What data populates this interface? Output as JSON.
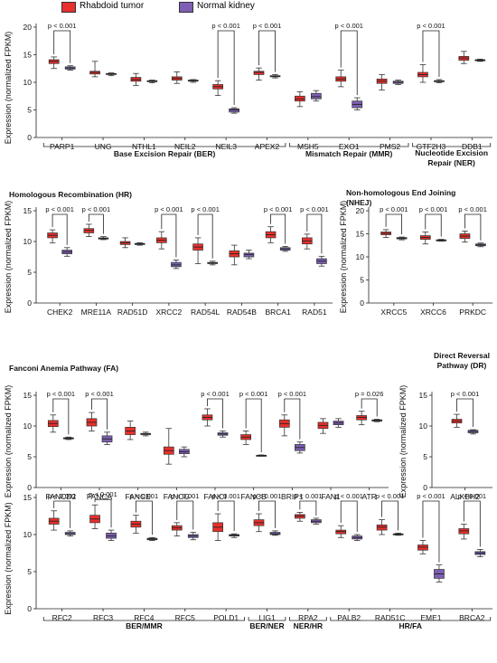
{
  "legend": {
    "tumor": {
      "label": "Rhabdoid tumor",
      "color": "#e8302c"
    },
    "normal": {
      "label": "Normal kidney",
      "color": "#7d5fb3"
    }
  },
  "y_axis_label": "Expression (normalized FPKM)",
  "chart_data": [
    {
      "type": "box",
      "title": "",
      "ylim": [
        0,
        20
      ],
      "yticks": [
        0,
        5,
        10,
        15,
        20
      ],
      "genes": [
        {
          "name": "PARP1",
          "tumor": {
            "min": 12.5,
            "q1": 13.4,
            "med": 13.8,
            "q3": 14.1,
            "max": 14.6
          },
          "normal": {
            "min": 12.2,
            "q1": 12.4,
            "med": 12.6,
            "q3": 12.8,
            "max": 13.0
          },
          "p": "p < 0.001"
        },
        {
          "name": "UNG",
          "tumor": {
            "min": 11.0,
            "q1": 11.5,
            "med": 11.8,
            "q3": 12.0,
            "max": 13.8
          },
          "normal": {
            "min": 11.2,
            "q1": 11.4,
            "med": 11.5,
            "q3": 11.6,
            "max": 11.7
          }
        },
        {
          "name": "NTHL1",
          "tumor": {
            "min": 9.4,
            "q1": 10.2,
            "med": 10.5,
            "q3": 10.9,
            "max": 11.6
          },
          "normal": {
            "min": 9.9,
            "q1": 10.1,
            "med": 10.2,
            "q3": 10.3,
            "max": 10.4
          }
        },
        {
          "name": "NEIL2",
          "tumor": {
            "min": 9.8,
            "q1": 10.4,
            "med": 10.7,
            "q3": 11.0,
            "max": 11.9
          },
          "normal": {
            "min": 10.0,
            "q1": 10.2,
            "med": 10.3,
            "q3": 10.4,
            "max": 10.5
          }
        },
        {
          "name": "NEIL3",
          "tumor": {
            "min": 7.6,
            "q1": 8.8,
            "med": 9.2,
            "q3": 9.6,
            "max": 10.3
          },
          "normal": {
            "min": 4.4,
            "q1": 4.6,
            "med": 5.0,
            "q3": 5.2,
            "max": 5.4
          },
          "p": "p < 0.001"
        },
        {
          "name": "APEX2",
          "tumor": {
            "min": 10.4,
            "q1": 11.4,
            "med": 11.8,
            "q3": 12.0,
            "max": 12.6
          },
          "normal": {
            "min": 10.8,
            "q1": 11.0,
            "med": 11.1,
            "q3": 11.2,
            "max": 11.4
          },
          "p": "p < 0.001"
        },
        {
          "name": "MSH5",
          "tumor": {
            "min": 5.6,
            "q1": 6.6,
            "med": 7.0,
            "q3": 7.5,
            "max": 8.3
          },
          "normal": {
            "min": 6.6,
            "q1": 7.0,
            "med": 7.4,
            "q3": 8.0,
            "max": 8.5
          }
        },
        {
          "name": "EXO1",
          "tumor": {
            "min": 9.2,
            "q1": 10.2,
            "med": 10.6,
            "q3": 11.0,
            "max": 12.2
          },
          "normal": {
            "min": 5.0,
            "q1": 5.4,
            "med": 6.0,
            "q3": 6.6,
            "max": 7.2
          },
          "p": "p < 0.001"
        },
        {
          "name": "PMS2",
          "tumor": {
            "min": 8.6,
            "q1": 9.8,
            "med": 10.2,
            "q3": 10.6,
            "max": 11.4
          },
          "normal": {
            "min": 9.6,
            "q1": 9.8,
            "med": 10.0,
            "q3": 10.2,
            "max": 10.4
          }
        },
        {
          "name": "GTF2H3",
          "tumor": {
            "min": 10.0,
            "q1": 11.0,
            "med": 11.4,
            "q3": 11.8,
            "max": 13.2
          },
          "normal": {
            "min": 9.9,
            "q1": 10.1,
            "med": 10.2,
            "q3": 10.3,
            "max": 10.5
          },
          "p": "p < 0.001"
        },
        {
          "name": "DDB1",
          "tumor": {
            "min": 13.4,
            "q1": 14.0,
            "med": 14.4,
            "q3": 14.7,
            "max": 15.6
          },
          "normal": {
            "min": 13.8,
            "q1": 13.9,
            "med": 14.0,
            "q3": 14.1,
            "max": 14.2
          }
        }
      ],
      "groups": [
        {
          "label": "Base Excision Repair (BER)",
          "from": 0,
          "to": 5
        },
        {
          "label": "Mismatch Repair (MMR)",
          "from": 6,
          "to": 8
        },
        {
          "label": "Nucleotide Excision",
          "label2": "Repair (NER)",
          "from": 9,
          "to": 10
        }
      ]
    },
    {
      "type": "box",
      "title": "Homologous Recombination (HR)",
      "ylim": [
        0,
        15
      ],
      "yticks": [
        0,
        5,
        10,
        15
      ],
      "genes": [
        {
          "name": "CHEK2",
          "tumor": {
            "min": 9.8,
            "q1": 10.6,
            "med": 11.0,
            "q3": 11.4,
            "max": 11.9
          },
          "normal": {
            "min": 7.6,
            "q1": 8.0,
            "med": 8.3,
            "q3": 8.6,
            "max": 9.0
          },
          "p": "p < 0.001"
        },
        {
          "name": "MRE11A",
          "tumor": {
            "min": 10.8,
            "q1": 11.4,
            "med": 11.8,
            "q3": 12.1,
            "max": 12.8
          },
          "normal": {
            "min": 10.3,
            "q1": 10.4,
            "med": 10.5,
            "q3": 10.6,
            "max": 10.8
          },
          "p": "p < 0.001"
        },
        {
          "name": "RAD51D",
          "tumor": {
            "min": 9.0,
            "q1": 9.5,
            "med": 9.8,
            "q3": 10.0,
            "max": 10.6
          },
          "normal": {
            "min": 9.4,
            "q1": 9.5,
            "med": 9.6,
            "q3": 9.7,
            "max": 9.8
          }
        },
        {
          "name": "XRCC2",
          "tumor": {
            "min": 8.8,
            "q1": 9.8,
            "med": 10.2,
            "q3": 10.6,
            "max": 11.6
          },
          "normal": {
            "min": 5.6,
            "q1": 5.9,
            "med": 6.2,
            "q3": 6.6,
            "max": 7.0
          },
          "p": "p < 0.001"
        },
        {
          "name": "RAD54L",
          "tumor": {
            "min": 6.4,
            "q1": 8.6,
            "med": 9.1,
            "q3": 9.6,
            "max": 10.6
          },
          "normal": {
            "min": 6.2,
            "q1": 6.4,
            "med": 6.5,
            "q3": 6.6,
            "max": 6.8
          },
          "p": "p < 0.001"
        },
        {
          "name": "RAD54B",
          "tumor": {
            "min": 6.2,
            "q1": 7.5,
            "med": 8.0,
            "q3": 8.5,
            "max": 9.4
          },
          "normal": {
            "min": 7.2,
            "q1": 7.5,
            "med": 7.9,
            "q3": 8.1,
            "max": 8.6
          }
        },
        {
          "name": "BRCA1",
          "tumor": {
            "min": 9.8,
            "q1": 10.6,
            "med": 11.1,
            "q3": 11.6,
            "max": 12.4
          },
          "normal": {
            "min": 8.4,
            "q1": 8.6,
            "med": 8.8,
            "q3": 9.0,
            "max": 9.2
          },
          "p": "p < 0.001"
        },
        {
          "name": "RAD51",
          "tumor": {
            "min": 8.8,
            "q1": 9.6,
            "med": 10.1,
            "q3": 10.6,
            "max": 11.2
          },
          "normal": {
            "min": 6.0,
            "q1": 6.4,
            "med": 6.8,
            "q3": 7.2,
            "max": 7.6
          },
          "p": "p < 0.001"
        }
      ]
    },
    {
      "type": "box",
      "title": "Non-homologous End Joining",
      "title2": "(NHEJ)",
      "ylim": [
        0,
        20
      ],
      "yticks": [
        0,
        5,
        10,
        15,
        20
      ],
      "genes": [
        {
          "name": "XRCC5",
          "tumor": {
            "min": 14.2,
            "q1": 14.8,
            "med": 15.1,
            "q3": 15.4,
            "max": 15.9
          },
          "normal": {
            "min": 13.7,
            "q1": 13.9,
            "med": 14.0,
            "q3": 14.2,
            "max": 14.3
          },
          "p": "p < 0.001"
        },
        {
          "name": "XRCC6",
          "tumor": {
            "min": 12.8,
            "q1": 13.8,
            "med": 14.2,
            "q3": 14.6,
            "max": 15.4
          },
          "normal": {
            "min": 13.4,
            "q1": 13.5,
            "med": 13.6,
            "q3": 13.7,
            "max": 13.8
          },
          "p": "p < 0.001"
        },
        {
          "name": "PRKDC",
          "tumor": {
            "min": 13.2,
            "q1": 14.0,
            "med": 14.5,
            "q3": 15.0,
            "max": 15.6
          },
          "normal": {
            "min": 12.2,
            "q1": 12.4,
            "med": 12.6,
            "q3": 12.8,
            "max": 13.0
          },
          "p": "p < 0.001"
        }
      ]
    },
    {
      "type": "box",
      "title": "Fanconi Anemia Pathway (FA)",
      "ylim": [
        0,
        15
      ],
      "yticks": [
        0,
        5,
        10,
        15
      ],
      "genes": [
        {
          "name": "FANCD2",
          "tumor": {
            "min": 9.0,
            "q1": 9.9,
            "med": 10.4,
            "q3": 10.9,
            "max": 11.8
          },
          "normal": {
            "min": 7.8,
            "q1": 7.9,
            "med": 8.0,
            "q3": 8.1,
            "max": 8.2
          },
          "p": "p < 0.001"
        },
        {
          "name": "FANCA",
          "tumor": {
            "min": 9.2,
            "q1": 10.0,
            "med": 10.6,
            "q3": 11.2,
            "max": 12.2
          },
          "normal": {
            "min": 7.0,
            "q1": 7.4,
            "med": 7.9,
            "q3": 8.4,
            "max": 9.0
          },
          "p": "p < 0.001"
        },
        {
          "name": "FANCE",
          "tumor": {
            "min": 7.8,
            "q1": 8.6,
            "med": 9.2,
            "q3": 9.8,
            "max": 10.8
          },
          "normal": {
            "min": 8.4,
            "q1": 8.6,
            "med": 8.7,
            "q3": 8.8,
            "max": 9.0
          }
        },
        {
          "name": "FANCG",
          "tumor": {
            "min": 3.8,
            "q1": 5.4,
            "med": 6.0,
            "q3": 6.6,
            "max": 9.6
          },
          "normal": {
            "min": 5.0,
            "q1": 5.5,
            "med": 5.8,
            "q3": 6.2,
            "max": 6.6
          }
        },
        {
          "name": "FANCI",
          "tumor": {
            "min": 10.0,
            "q1": 11.0,
            "med": 11.4,
            "q3": 11.8,
            "max": 12.8
          },
          "normal": {
            "min": 8.2,
            "q1": 8.5,
            "med": 8.7,
            "q3": 8.9,
            "max": 9.2
          },
          "p": "p < 0.001"
        },
        {
          "name": "FANCB",
          "tumor": {
            "min": 7.0,
            "q1": 7.8,
            "med": 8.2,
            "q3": 8.6,
            "max": 9.2
          },
          "normal": {
            "min": 5.1,
            "q1": 5.15,
            "med": 5.2,
            "q3": 5.25,
            "max": 5.3
          },
          "p": "p < 0.001"
        },
        {
          "name": "BRIP1",
          "tumor": {
            "min": 8.4,
            "q1": 9.8,
            "med": 10.4,
            "q3": 11.0,
            "max": 11.8
          },
          "normal": {
            "min": 5.6,
            "q1": 6.0,
            "med": 6.5,
            "q3": 7.0,
            "max": 7.4
          },
          "p": "p < 0.001"
        },
        {
          "name": "FAN1",
          "tumor": {
            "min": 8.8,
            "q1": 9.6,
            "med": 10.1,
            "q3": 10.6,
            "max": 11.2
          },
          "normal": {
            "min": 9.8,
            "q1": 10.2,
            "med": 10.5,
            "q3": 10.8,
            "max": 11.2
          }
        },
        {
          "name": "ATR",
          "tumor": {
            "min": 10.2,
            "q1": 11.0,
            "med": 11.4,
            "q3": 11.7,
            "max": 12.4
          },
          "normal": {
            "min": 10.7,
            "q1": 10.8,
            "med": 10.9,
            "q3": 11.0,
            "max": 11.1
          },
          "p": "p = 0.026"
        }
      ]
    },
    {
      "type": "box",
      "title": "Direct Reversal",
      "title2": "Pathway (DR)",
      "ylim": [
        0,
        15
      ],
      "yticks": [
        0,
        5,
        10,
        15
      ],
      "genes": [
        {
          "name": "ALKBH2",
          "tumor": {
            "min": 9.8,
            "q1": 10.5,
            "med": 10.8,
            "q3": 11.1,
            "max": 11.9
          },
          "normal": {
            "min": 8.7,
            "q1": 8.9,
            "med": 9.1,
            "q3": 9.3,
            "max": 9.4
          },
          "p": "p < 0.001"
        }
      ]
    },
    {
      "type": "box",
      "title": "",
      "ylim": [
        0,
        15
      ],
      "yticks": [
        0,
        5,
        10,
        15
      ],
      "genes": [
        {
          "name": "RFC2",
          "tumor": {
            "min": 10.6,
            "q1": 11.4,
            "med": 11.8,
            "q3": 12.2,
            "max": 13.2
          },
          "normal": {
            "min": 9.8,
            "q1": 10.0,
            "med": 10.1,
            "q3": 10.3,
            "max": 10.5
          },
          "p": "p < 0.001"
        },
        {
          "name": "RFC3",
          "tumor": {
            "min": 10.8,
            "q1": 11.6,
            "med": 12.1,
            "q3": 12.6,
            "max": 14.0
          },
          "normal": {
            "min": 9.2,
            "q1": 9.5,
            "med": 9.8,
            "q3": 10.2,
            "max": 10.6
          },
          "p": "p < 0.001"
        },
        {
          "name": "RFC4",
          "tumor": {
            "min": 10.2,
            "q1": 11.0,
            "med": 11.4,
            "q3": 11.8,
            "max": 12.6
          },
          "normal": {
            "min": 9.2,
            "q1": 9.3,
            "med": 9.4,
            "q3": 9.5,
            "max": 9.6
          },
          "p": "p < 0.001"
        },
        {
          "name": "RFC5",
          "tumor": {
            "min": 9.8,
            "q1": 10.6,
            "med": 10.9,
            "q3": 11.2,
            "max": 11.6
          },
          "normal": {
            "min": 9.3,
            "q1": 9.6,
            "med": 9.8,
            "q3": 10.0,
            "max": 10.3
          },
          "p": "p < 0.001"
        },
        {
          "name": "POLD1",
          "tumor": {
            "min": 9.2,
            "q1": 10.4,
            "med": 11.0,
            "q3": 11.6,
            "max": 12.8
          },
          "normal": {
            "min": 9.6,
            "q1": 9.8,
            "med": 9.9,
            "q3": 10.0,
            "max": 10.1
          },
          "p": "p < 0.001"
        },
        {
          "name": "LIG1",
          "tumor": {
            "min": 10.4,
            "q1": 11.2,
            "med": 11.6,
            "q3": 12.0,
            "max": 12.8
          },
          "normal": {
            "min": 9.9,
            "q1": 10.0,
            "med": 10.1,
            "q3": 10.3,
            "max": 10.5
          },
          "p": "p < 0.001"
        },
        {
          "name": "RPA2",
          "tumor": {
            "min": 11.8,
            "q1": 12.2,
            "med": 12.5,
            "q3": 12.7,
            "max": 13.0
          },
          "normal": {
            "min": 11.4,
            "q1": 11.6,
            "med": 11.8,
            "q3": 12.0,
            "max": 12.2
          },
          "p": "p < 0.001"
        },
        {
          "name": "PALB2",
          "tumor": {
            "min": 9.6,
            "q1": 10.1,
            "med": 10.4,
            "q3": 10.6,
            "max": 11.2
          },
          "normal": {
            "min": 9.2,
            "q1": 9.4,
            "med": 9.6,
            "q3": 9.8,
            "max": 10.0
          },
          "p": "p < 0.001"
        },
        {
          "name": "RAD51C",
          "tumor": {
            "min": 10.0,
            "q1": 10.6,
            "med": 11.0,
            "q3": 11.3,
            "max": 12.0
          },
          "normal": {
            "min": 9.9,
            "q1": 10.0,
            "med": 10.05,
            "q3": 10.1,
            "max": 10.2
          },
          "p": "p < 0.001"
        },
        {
          "name": "EME1",
          "tumor": {
            "min": 7.4,
            "q1": 7.9,
            "med": 8.3,
            "q3": 8.6,
            "max": 9.2
          },
          "normal": {
            "min": 3.6,
            "q1": 4.1,
            "med": 4.7,
            "q3": 5.3,
            "max": 5.9
          },
          "p": "p < 0.001"
        },
        {
          "name": "BRCA2",
          "tumor": {
            "min": 9.4,
            "q1": 10.1,
            "med": 10.5,
            "q3": 10.8,
            "max": 11.4
          },
          "normal": {
            "min": 7.0,
            "q1": 7.3,
            "med": 7.5,
            "q3": 7.7,
            "max": 8.0
          },
          "p": "p < 0.001"
        }
      ],
      "groups": [
        {
          "label": "BER/MMR",
          "from": 0,
          "to": 4
        },
        {
          "label": "BER/NER",
          "from": 5,
          "to": 5
        },
        {
          "label": "NER/HR",
          "from": 6,
          "to": 6
        },
        {
          "label": "HR/FA",
          "from": 7,
          "to": 10
        }
      ]
    }
  ]
}
